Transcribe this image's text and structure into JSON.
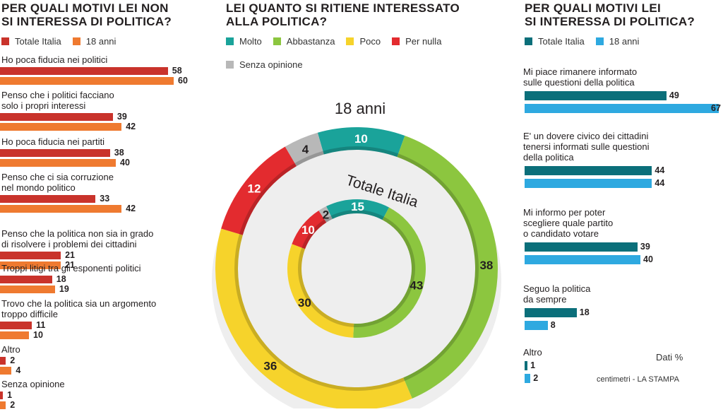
{
  "left": {
    "title_line1": "PER QUALI MOTIVI LEI NON",
    "title_line2": "SI INTERESSA DI POLITICA?",
    "legend": [
      {
        "label": "Totale Italia",
        "color": "#c9332b"
      },
      {
        "label": "18 anni",
        "color": "#ef7a30"
      }
    ]
  },
  "middle": {
    "title_line1": "LEI QUANTO SI RITIENE INTERESSATO",
    "title_line2": "ALLA POLITICA?",
    "legend": [
      {
        "label": "Molto",
        "color": "#1aa39a"
      },
      {
        "label": "Abbastanza",
        "color": "#8cc63f"
      },
      {
        "label": "Poco",
        "color": "#f6d32b"
      },
      {
        "label": "Per nulla",
        "color": "#e32b2f"
      },
      {
        "label": "Senza opinione",
        "color": "#b8b8b8"
      }
    ],
    "outer_ring_label": "18 anni",
    "inner_ring_label": "Totale Italia"
  },
  "right": {
    "title_line1": "PER QUALI MOTIVI LEI",
    "title_line2": "SI INTERESSA DI POLITICA?",
    "legend": [
      {
        "label": "Totale Italia",
        "color": "#0b6f7a"
      },
      {
        "label": "18 anni",
        "color": "#2ea9e0"
      }
    ],
    "units_note": "Dati %",
    "source": "centimetri - LA STAMPA"
  },
  "chart_data": [
    {
      "type": "bar",
      "title": "PER QUALI MOTIVI LEI NON SI INTERESSA DI POLITICA?",
      "categories": [
        "Ho poca fiducia nei politici",
        "Penso che i politici facciano solo i propri interessi",
        "Ho poca fiducia nei partiti",
        "Penso che ci sia corruzione nel mondo politico",
        "Penso che la politica non sia in grado di risolvere i problemi dei cittadini",
        "Troppi litigi tra gli esponenti politici",
        "Trovo che la politica sia un argomento troppo difficile",
        "Altro",
        "Senza opinione"
      ],
      "category_lines": [
        [
          "Ho poca fiducia nei politici"
        ],
        [
          "Penso che i politici facciano",
          "solo i propri interessi"
        ],
        [
          "Ho poca fiducia nei partiti"
        ],
        [
          "Penso che ci sia corruzione",
          "nel mondo politico"
        ],
        [
          "Penso che la politica non sia in grado",
          "di risolvere i problemi dei cittadini"
        ],
        [
          "Troppi litigi tra gli esponenti politici"
        ],
        [
          "Trovo che la politica sia un argomento",
          "troppo difficile"
        ],
        [
          "Altro"
        ],
        [
          "Senza opinione"
        ]
      ],
      "series": [
        {
          "name": "Totale Italia",
          "values": [
            58,
            39,
            38,
            33,
            21,
            18,
            11,
            2,
            1
          ]
        },
        {
          "name": "18 anni",
          "values": [
            60,
            42,
            40,
            42,
            21,
            19,
            10,
            4,
            2
          ]
        }
      ]
    },
    {
      "type": "pie",
      "title": "LEI QUANTO SI RITIENE INTERESSATO ALLA POLITICA?",
      "categories": [
        "Molto",
        "Abbastanza",
        "Poco",
        "Per nulla",
        "Senza opinione"
      ],
      "series": [
        {
          "name": "18 anni",
          "values": [
            10,
            38,
            36,
            12,
            4
          ]
        },
        {
          "name": "Totale Italia",
          "values": [
            15,
            43,
            30,
            10,
            2
          ]
        }
      ]
    },
    {
      "type": "bar",
      "title": "PER QUALI MOTIVI LEI SI INTERESSA DI POLITICA?",
      "categories": [
        "Mi piace rimanere informato sulle questioni della politica",
        "E' un dovere civico dei cittadini tenersi informati sulle questioni della politica",
        "Mi informo per poter scegliere quale partito o candidato votare",
        "Seguo la politica da sempre",
        "Altro"
      ],
      "category_lines": [
        [
          "Mi piace rimanere informato",
          "sulle questioni della politica"
        ],
        [
          "E' un dovere civico dei cittadini",
          "tenersi informati sulle questioni",
          "della politica"
        ],
        [
          "Mi informo per poter",
          "scegliere quale partito",
          "o candidato votare"
        ],
        [
          "Seguo la politica",
          "da sempre"
        ],
        [
          "Altro"
        ]
      ],
      "series": [
        {
          "name": "Totale Italia",
          "values": [
            49,
            44,
            39,
            18,
            1
          ]
        },
        {
          "name": "18 anni",
          "values": [
            67,
            44,
            40,
            8,
            2
          ]
        }
      ]
    }
  ]
}
